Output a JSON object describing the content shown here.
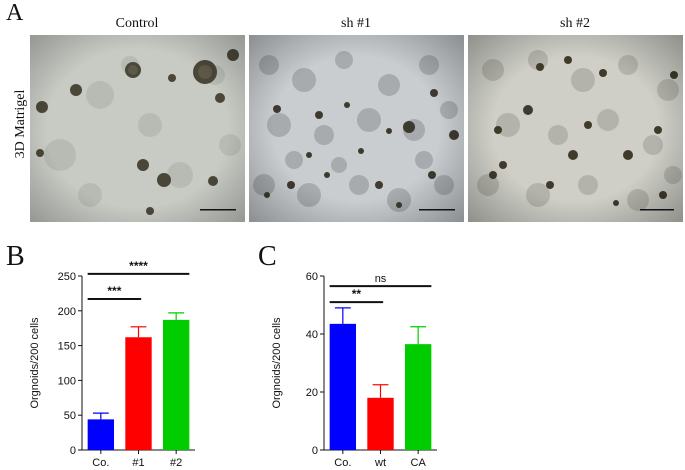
{
  "figure": {
    "panel_a_letter": "A",
    "panel_b_letter": "B",
    "panel_c_letter": "C",
    "row_label": "3D Matrigel",
    "micrographs": [
      {
        "title": "Control",
        "tone": "#c8ccc6"
      },
      {
        "title": "sh #1",
        "tone": "#c9cdd0"
      },
      {
        "title": "sh #2",
        "tone": "#cfcfc8"
      }
    ]
  },
  "chart_data": [
    {
      "type": "bar",
      "categories": [
        "Co.",
        "#1",
        "#2"
      ],
      "values": [
        44,
        162,
        187
      ],
      "errors": [
        9,
        15,
        10
      ],
      "colors": [
        "#0000ff",
        "#ff0000",
        "#00cc00"
      ],
      "ylabel": "Orgnoids/200 cells",
      "ylim": [
        0,
        250
      ],
      "yticks": [
        0,
        50,
        100,
        150,
        200,
        250
      ],
      "significance": [
        {
          "from": "Co.",
          "to": "#1",
          "label": "***"
        },
        {
          "from": "Co.",
          "to": "#2",
          "label": "****"
        }
      ]
    },
    {
      "type": "bar",
      "categories": [
        "Co.",
        "wt",
        "CA"
      ],
      "values": [
        43.5,
        18,
        36.5
      ],
      "errors": [
        5.5,
        4.5,
        6
      ],
      "colors": [
        "#0000ff",
        "#ff0000",
        "#00cc00"
      ],
      "ylabel": "Orgnoids/200 cells",
      "ylim": [
        0,
        60
      ],
      "yticks": [
        0,
        20,
        40,
        60
      ],
      "significance": [
        {
          "from": "Co.",
          "to": "wt",
          "label": "**"
        },
        {
          "from": "Co.",
          "to": "CA",
          "label": "ns"
        }
      ]
    }
  ]
}
